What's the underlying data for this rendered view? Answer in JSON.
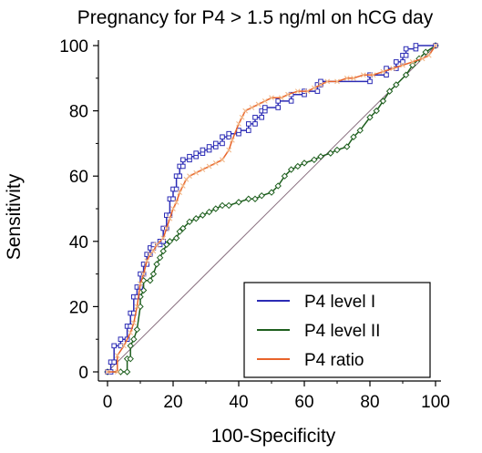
{
  "chart_data": {
    "type": "line",
    "title": "Pregnancy for P4 > 1.5 ng/ml on hCG day",
    "xlabel": "100-Specificity",
    "ylabel": "Sensitivity",
    "xlim": [
      0,
      100
    ],
    "ylim": [
      0,
      100
    ],
    "xticks": [
      "0",
      "20",
      "40",
      "60",
      "80",
      "100"
    ],
    "yticks": [
      "0",
      "20",
      "40",
      "60",
      "80",
      "100"
    ],
    "grid": false,
    "legend_position": "bottom-right",
    "diagonal_reference": true,
    "colors": {
      "P4 level I": "#2b2bb5",
      "P4 level II": "#1e5f1e",
      "P4 ratio": "#e8632a",
      "P4 ratio markers": "#f2b98a",
      "diagonal": "#8a7080"
    },
    "series": [
      {
        "name": "P4 level I",
        "points": [
          [
            0,
            0
          ],
          [
            1,
            0
          ],
          [
            1,
            3
          ],
          [
            2,
            3
          ],
          [
            2,
            8
          ],
          [
            4,
            8
          ],
          [
            4,
            10
          ],
          [
            6,
            10
          ],
          [
            6,
            14
          ],
          [
            7,
            14
          ],
          [
            7,
            18
          ],
          [
            8,
            18
          ],
          [
            8,
            23
          ],
          [
            9,
            23
          ],
          [
            9,
            26
          ],
          [
            10,
            26
          ],
          [
            10,
            30
          ],
          [
            11,
            30
          ],
          [
            11,
            33
          ],
          [
            12,
            33
          ],
          [
            12,
            36
          ],
          [
            13,
            36
          ],
          [
            13,
            38
          ],
          [
            14,
            38
          ],
          [
            14,
            39
          ],
          [
            16,
            39
          ],
          [
            16,
            40
          ],
          [
            17,
            40
          ],
          [
            17,
            44
          ],
          [
            18,
            44
          ],
          [
            18,
            48
          ],
          [
            19,
            48
          ],
          [
            19,
            53
          ],
          [
            20,
            53
          ],
          [
            20,
            56
          ],
          [
            21,
            56
          ],
          [
            21,
            60
          ],
          [
            22,
            60
          ],
          [
            22,
            63
          ],
          [
            23,
            63
          ],
          [
            23,
            65
          ],
          [
            25,
            65
          ],
          [
            25,
            66
          ],
          [
            27,
            66
          ],
          [
            27,
            67
          ],
          [
            29,
            67
          ],
          [
            29,
            68
          ],
          [
            31,
            68
          ],
          [
            31,
            69
          ],
          [
            33,
            69
          ],
          [
            33,
            70
          ],
          [
            35,
            70
          ],
          [
            35,
            72
          ],
          [
            37,
            72
          ],
          [
            37,
            73
          ],
          [
            40,
            73
          ],
          [
            40,
            74
          ],
          [
            43,
            74
          ],
          [
            43,
            76
          ],
          [
            45,
            76
          ],
          [
            45,
            78
          ],
          [
            47,
            78
          ],
          [
            47,
            80
          ],
          [
            48,
            80
          ],
          [
            48,
            81
          ],
          [
            52,
            81
          ],
          [
            52,
            83
          ],
          [
            56,
            83
          ],
          [
            56,
            85
          ],
          [
            60,
            85
          ],
          [
            60,
            86
          ],
          [
            64,
            86
          ],
          [
            64,
            88
          ],
          [
            65,
            88
          ],
          [
            65,
            89
          ],
          [
            80,
            89
          ],
          [
            80,
            91
          ],
          [
            85,
            91
          ],
          [
            85,
            93
          ],
          [
            88,
            93
          ],
          [
            88,
            95
          ],
          [
            90,
            95
          ],
          [
            90,
            97
          ],
          [
            91,
            97
          ],
          [
            91,
            99
          ],
          [
            94,
            99
          ],
          [
            94,
            100
          ],
          [
            100,
            100
          ]
        ]
      },
      {
        "name": "P4 level II",
        "points": [
          [
            0,
            0
          ],
          [
            4,
            0
          ],
          [
            6,
            0
          ],
          [
            6,
            4
          ],
          [
            7,
            4
          ],
          [
            7,
            8
          ],
          [
            8,
            10
          ],
          [
            9,
            13
          ],
          [
            10,
            20
          ],
          [
            10,
            23
          ],
          [
            11,
            25
          ],
          [
            11,
            28
          ],
          [
            13,
            28
          ],
          [
            14,
            30
          ],
          [
            15,
            33
          ],
          [
            16,
            35
          ],
          [
            17,
            37
          ],
          [
            18,
            39
          ],
          [
            19,
            40
          ],
          [
            21,
            41
          ],
          [
            22,
            43
          ],
          [
            23,
            44
          ],
          [
            25,
            46
          ],
          [
            27,
            47
          ],
          [
            29,
            48
          ],
          [
            31,
            49
          ],
          [
            33,
            50
          ],
          [
            35,
            51
          ],
          [
            37,
            51
          ],
          [
            40,
            52
          ],
          [
            43,
            53
          ],
          [
            45,
            53
          ],
          [
            47,
            54
          ],
          [
            50,
            55
          ],
          [
            52,
            57
          ],
          [
            54,
            60
          ],
          [
            56,
            62
          ],
          [
            58,
            63
          ],
          [
            60,
            64
          ],
          [
            63,
            65
          ],
          [
            65,
            66
          ],
          [
            68,
            67
          ],
          [
            70,
            68
          ],
          [
            73,
            69
          ],
          [
            75,
            72
          ],
          [
            77,
            74
          ],
          [
            80,
            78
          ],
          [
            82,
            80
          ],
          [
            84,
            83
          ],
          [
            86,
            86
          ],
          [
            88,
            88
          ],
          [
            91,
            91
          ],
          [
            93,
            94
          ],
          [
            95,
            96
          ],
          [
            97,
            98
          ],
          [
            100,
            100
          ]
        ]
      },
      {
        "name": "P4 ratio",
        "points": [
          [
            0,
            0
          ],
          [
            3,
            0
          ],
          [
            3,
            5
          ],
          [
            5,
            8
          ],
          [
            7,
            12
          ],
          [
            8,
            15
          ],
          [
            9,
            20
          ],
          [
            10,
            27
          ],
          [
            11,
            30
          ],
          [
            12,
            34
          ],
          [
            13,
            36
          ],
          [
            14,
            37
          ],
          [
            15,
            39
          ],
          [
            17,
            41
          ],
          [
            18,
            44
          ],
          [
            19,
            47
          ],
          [
            20,
            50
          ],
          [
            21,
            52
          ],
          [
            22,
            55
          ],
          [
            23,
            57
          ],
          [
            24,
            59
          ],
          [
            25,
            60
          ],
          [
            27,
            61
          ],
          [
            29,
            62
          ],
          [
            31,
            63
          ],
          [
            33,
            64
          ],
          [
            35,
            65
          ],
          [
            37,
            68
          ],
          [
            38,
            71
          ],
          [
            40,
            76
          ],
          [
            41,
            78
          ],
          [
            42,
            80
          ],
          [
            44,
            81
          ],
          [
            46,
            82
          ],
          [
            48,
            83
          ],
          [
            50,
            84
          ],
          [
            53,
            84
          ],
          [
            55,
            85
          ],
          [
            58,
            86
          ],
          [
            61,
            86
          ],
          [
            63,
            87
          ],
          [
            65,
            88
          ],
          [
            67,
            89
          ],
          [
            70,
            89
          ],
          [
            73,
            90
          ],
          [
            75,
            90
          ],
          [
            78,
            91
          ],
          [
            81,
            91
          ],
          [
            84,
            92
          ],
          [
            87,
            93
          ],
          [
            90,
            94
          ],
          [
            93,
            95
          ],
          [
            96,
            96
          ],
          [
            98,
            97
          ],
          [
            100,
            100
          ]
        ]
      }
    ]
  }
}
